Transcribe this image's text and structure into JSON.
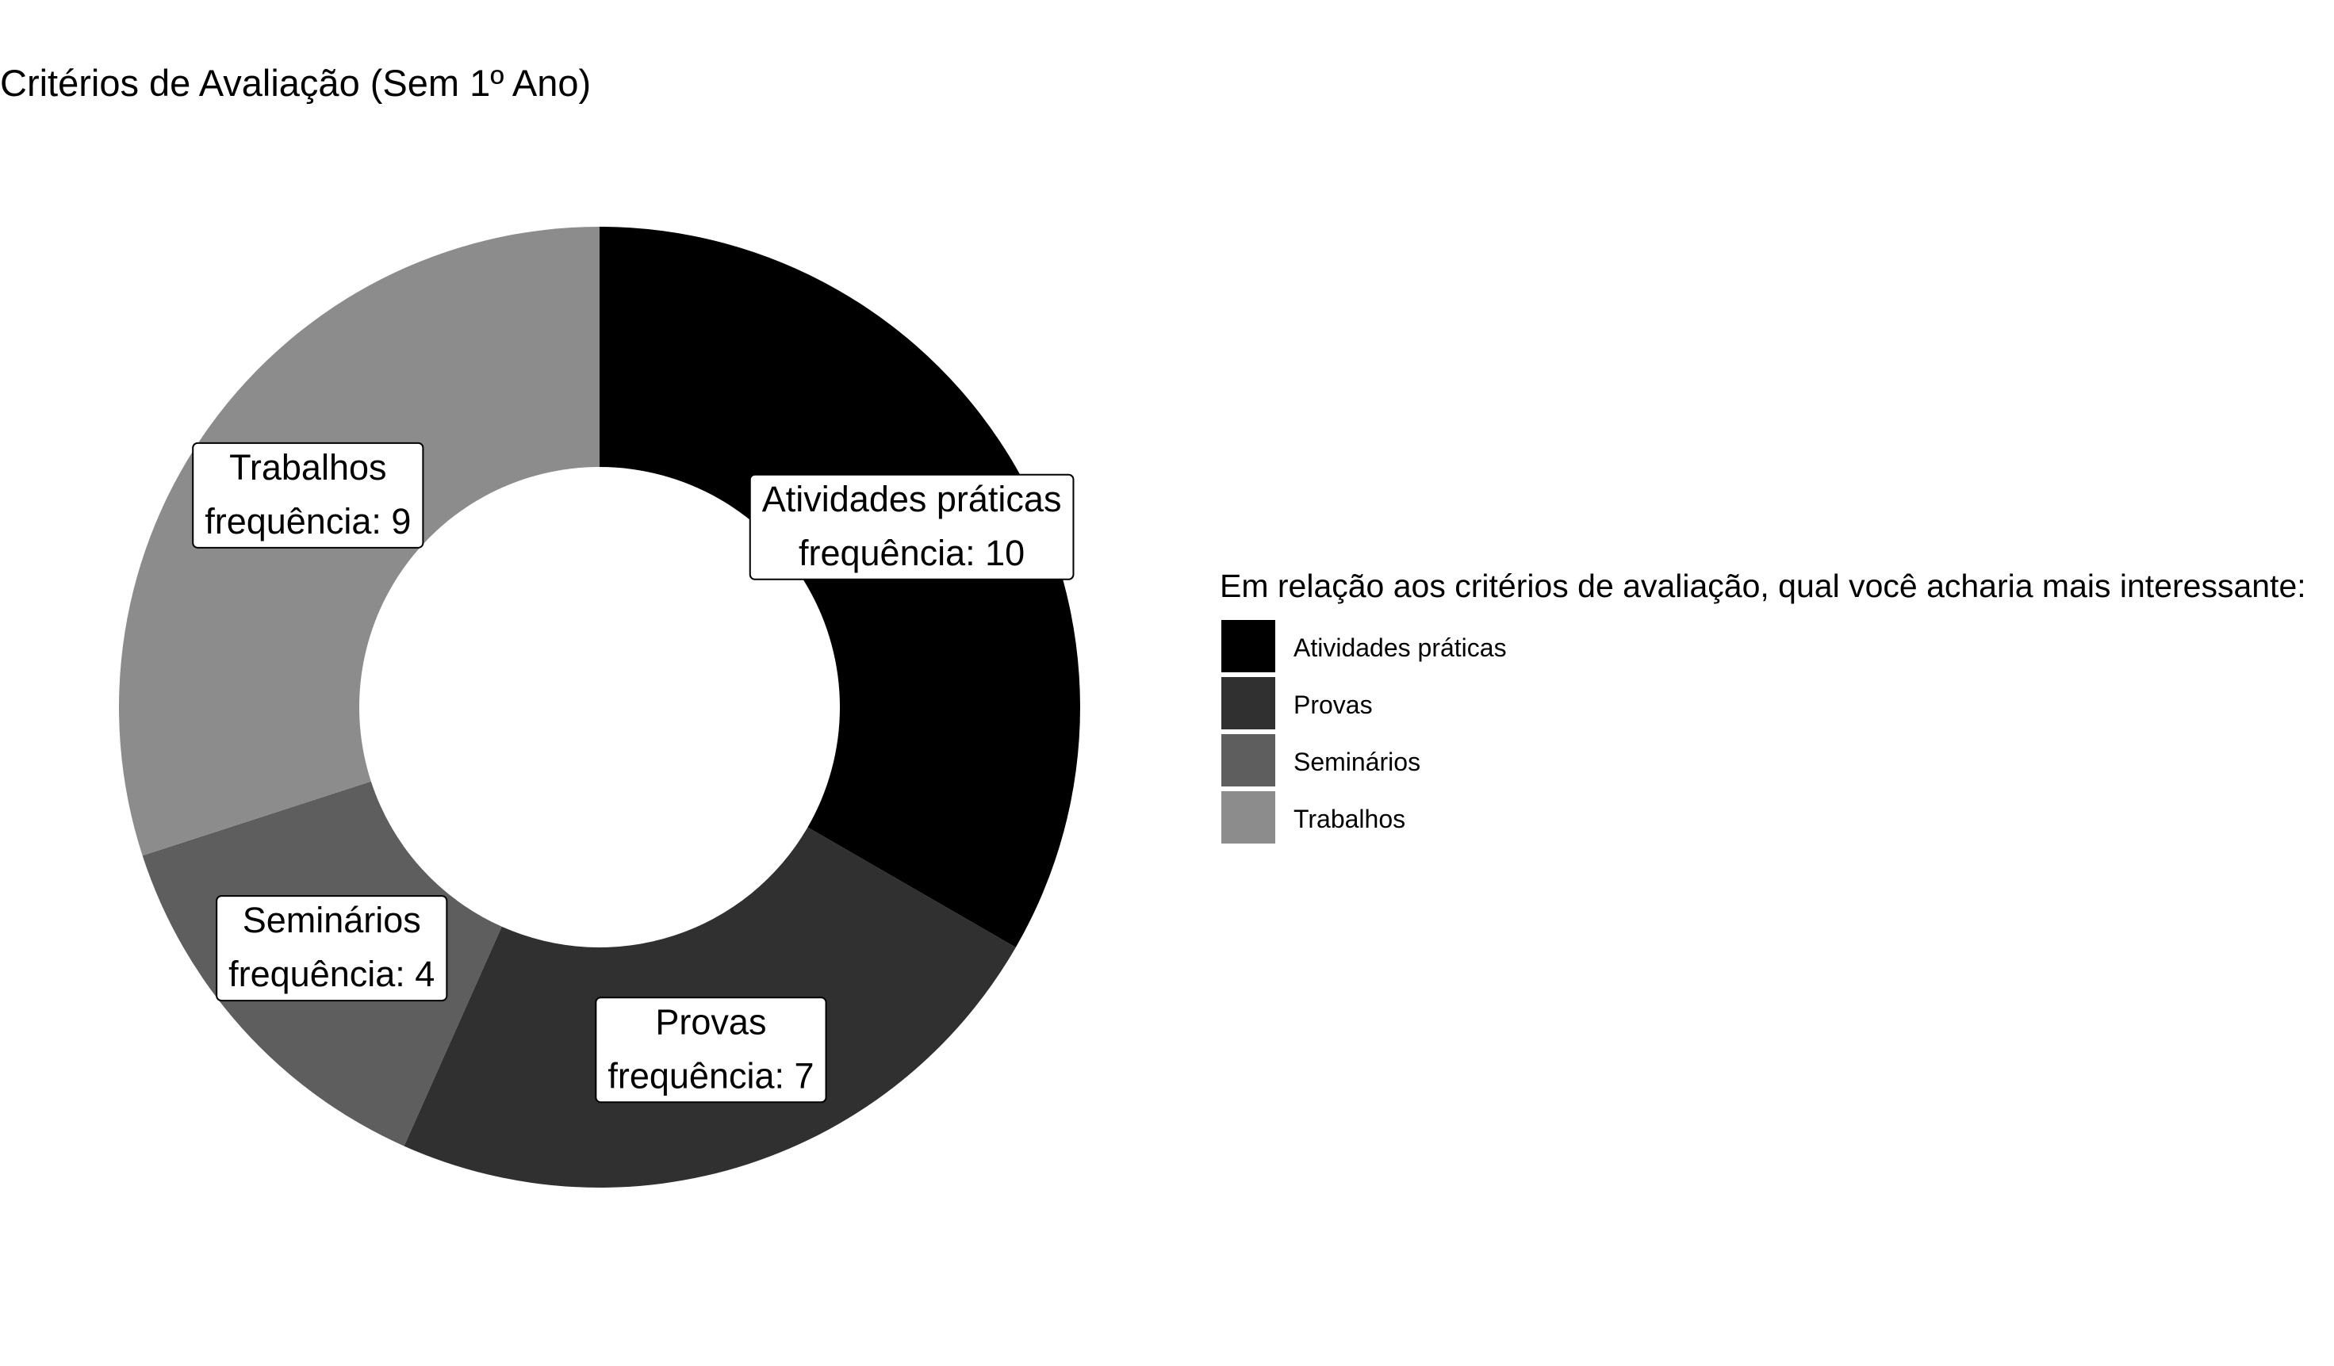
{
  "chart_data": {
    "type": "pie",
    "title": "Critérios de Avaliação (Sem 1º Ano)",
    "label_prefix": "frequência: ",
    "categories": [
      "Atividades práticas",
      "Provas",
      "Seminários",
      "Trabalhos"
    ],
    "values": [
      10,
      7,
      4,
      9
    ],
    "colors": [
      "#000000",
      "#303030",
      "#5e5e5e",
      "#8c8c8c"
    ],
    "legend": {
      "title": "Em relação aos critérios de avaliação, qual você acharia mais interessante:",
      "position": "right"
    }
  }
}
